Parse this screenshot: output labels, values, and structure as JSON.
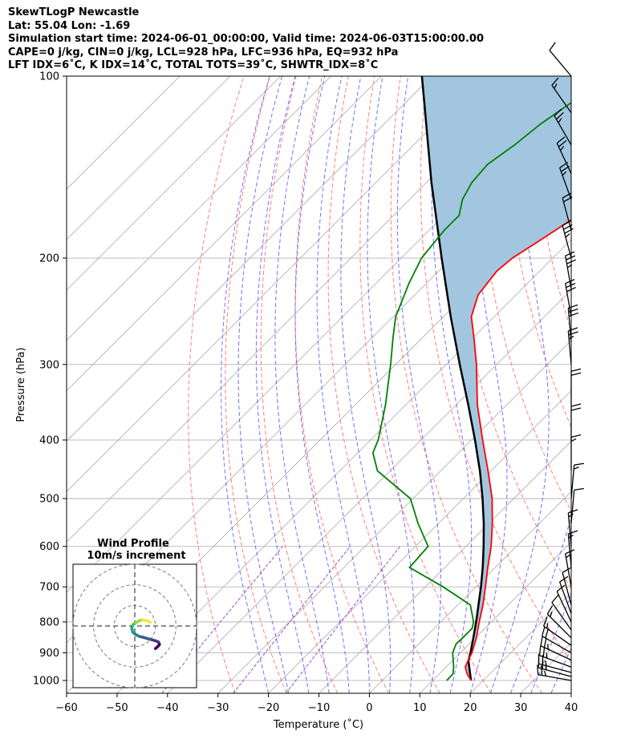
{
  "header": {
    "line1": "SkewTLogP Newcastle",
    "line2": "Lat: 55.04   Lon: -1.69",
    "line3": "Simulation start time: 2024-06-01_00:00:00, Valid time: 2024-06-03T15:00:00.00",
    "line4": "CAPE=0 j/kg, CIN=0 j/kg, LCL=928 hPa, LFC=936 hPa, EQ=932 hPa",
    "line5": "LFT IDX=6˚C, K IDX=14˚C, TOTAL TOTS=39˚C, SHWTR_IDX=8˚C"
  },
  "chart_data": {
    "type": "line",
    "skew_t": true,
    "xlabel": "Temperature (˚C)",
    "ylabel": "Pressure (hPa)",
    "xlim": [
      -60,
      40
    ],
    "ylim": [
      1050,
      100
    ],
    "y_scale": "log",
    "x_ticks": [
      -60,
      -50,
      -40,
      -30,
      -20,
      -10,
      0,
      10,
      20,
      30,
      40
    ],
    "x_tick_labels": [
      "−60",
      "−50",
      "−40",
      "−30",
      "−20",
      "−10",
      "0",
      "10",
      "20",
      "30",
      "40"
    ],
    "y_ticks": [
      1000,
      900,
      800,
      700,
      600,
      500,
      400,
      300,
      200,
      100
    ],
    "y_tick_labels": [
      "1000",
      "900",
      "800",
      "700",
      "600",
      "500",
      "400",
      "300",
      "200",
      "100"
    ],
    "grid": true,
    "temperature": {
      "color": "#ff0000",
      "p": [
        1000,
        975,
        950,
        925,
        900,
        850,
        800,
        750,
        700,
        650,
        600,
        550,
        500,
        450,
        400,
        350,
        300,
        270,
        250,
        230,
        210,
        200,
        190,
        180,
        170,
        160,
        150,
        140,
        130,
        120,
        110,
        100
      ],
      "t": [
        17.6,
        15.5,
        13.8,
        13.0,
        12.3,
        10.2,
        7.6,
        5.0,
        1.9,
        -1.5,
        -5.0,
        -9.3,
        -14.3,
        -20.6,
        -27.8,
        -35.8,
        -44.0,
        -50.0,
        -54.5,
        -57.5,
        -58.5,
        -58.0,
        -56.5,
        -55.0,
        -53.5,
        -52.0,
        -49.0,
        -46.5,
        -43.5,
        -41.5,
        -38.0,
        -34.0
      ]
    },
    "dewpoint": {
      "color": "#008000",
      "p": [
        1000,
        975,
        950,
        925,
        900,
        870,
        850,
        820,
        800,
        750,
        700,
        650,
        600,
        550,
        500,
        450,
        420,
        400,
        350,
        300,
        270,
        250,
        220,
        200,
        180,
        170,
        160,
        150,
        140,
        130,
        120,
        110,
        100
      ],
      "t": [
        12.8,
        12.7,
        11.5,
        10.0,
        8.5,
        7.4,
        7.5,
        7.5,
        6.5,
        2.5,
        -6.5,
        -17.0,
        -17.5,
        -24.0,
        -30.5,
        -42.5,
        -47.0,
        -48.5,
        -54.0,
        -61.0,
        -66.0,
        -69.5,
        -73.5,
        -76.0,
        -77.0,
        -77.0,
        -79.5,
        -81.0,
        -81.5,
        -80.0,
        -79.0,
        -77.0,
        -75.5
      ]
    },
    "parcel": {
      "color": "#000000",
      "p": [
        1000,
        928,
        900,
        850,
        800,
        750,
        700,
        650,
        600,
        550,
        500,
        450,
        400,
        350,
        300,
        250,
        200,
        150,
        100
      ],
      "t": [
        17.6,
        13.2,
        12.0,
        9.6,
        7.0,
        4.1,
        1.0,
        -2.5,
        -6.5,
        -11.0,
        -16.2,
        -22.2,
        -29.3,
        -37.6,
        -47.3,
        -58.6,
        -72.0,
        -89.0,
        -112.0
      ]
    },
    "shading": "area between parcel and temperature",
    "shading_color": "#a2c6e0",
    "reference_lines": {
      "isotherms_color": "#aaaaaa",
      "dry_adiabats_color": "#ff6666",
      "moist_adiabats_color": "#4d4dff",
      "mixing_ratio_color": "#9b4fc8"
    },
    "wind_barbs": {
      "p": [
        1000,
        985,
        970,
        950,
        925,
        900,
        875,
        850,
        825,
        800,
        775,
        750,
        700,
        650,
        600,
        550,
        500,
        450,
        400,
        350,
        300,
        275,
        250,
        225,
        200,
        180,
        160,
        145,
        130,
        115,
        100
      ],
      "speed_kt": [
        25,
        25,
        25,
        25,
        25,
        20,
        15,
        15,
        10,
        10,
        10,
        10,
        15,
        15,
        15,
        10,
        15,
        15,
        20,
        20,
        25,
        30,
        30,
        35,
        35,
        20,
        25,
        25,
        25,
        15,
        10
      ],
      "direction_deg": [
        280,
        285,
        285,
        290,
        295,
        300,
        305,
        315,
        325,
        335,
        340,
        345,
        350,
        355,
        355,
        5,
        5,
        0,
        0,
        0,
        355,
        355,
        350,
        350,
        345,
        345,
        340,
        335,
        330,
        325,
        320
      ]
    },
    "hodograph": {
      "title": "Wind Profile",
      "subtitle": "10m/s increment",
      "colormap": "viridis",
      "range": [
        -30,
        30
      ],
      "rings": [
        10,
        20,
        30
      ],
      "u": [
        10.0,
        11.2,
        12.0,
        11.5,
        10.0,
        7.5,
        4.0,
        2.0,
        0.5,
        -1.0,
        -1.5,
        -1.0,
        -0.5,
        0.5,
        2.0,
        4.0,
        6.0,
        7.5
      ],
      "v": [
        -11.0,
        -10.0,
        -9.0,
        -7.8,
        -7.2,
        -6.5,
        -5.5,
        -5.0,
        -4.2,
        -3.0,
        -1.0,
        0.5,
        1.0,
        1.5,
        2.5,
        3.0,
        2.5,
        1.8
      ]
    }
  }
}
